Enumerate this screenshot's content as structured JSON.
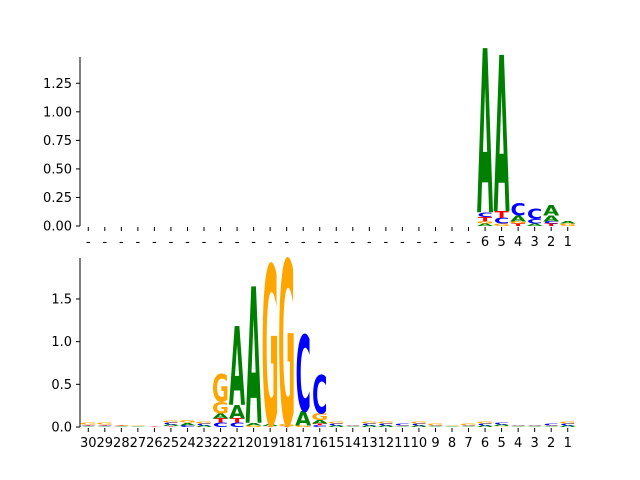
{
  "colors": {
    "A": "#008000",
    "C": "#0000ff",
    "G": "#ffa500",
    "T": "#ff0000",
    "axis": "#000000"
  },
  "chart_data": [
    {
      "type": "sequence-logo",
      "title": "",
      "xlabel": "",
      "ylabel": "",
      "ylim": [
        0,
        1.48
      ],
      "yticks": [
        "0.00",
        "0.25",
        "0.50",
        "0.75",
        "1.00",
        "1.25"
      ],
      "ytick_values": [
        0,
        0.25,
        0.5,
        0.75,
        1.0,
        1.25
      ],
      "xticks": [
        "-",
        "-",
        "-",
        "-",
        "-",
        "-",
        "-",
        "-",
        "-",
        "-",
        "-",
        "-",
        "-",
        "-",
        "-",
        "-",
        "-",
        "-",
        "-",
        "-",
        "-",
        "-",
        "-",
        "-",
        "6",
        "5",
        "4",
        "3",
        "2",
        "1"
      ],
      "positions": [
        {},
        {},
        {},
        {},
        {},
        {},
        {},
        {},
        {},
        {},
        {},
        {},
        {},
        {},
        {},
        {},
        {},
        {},
        {},
        {},
        {},
        {},
        {},
        {},
        {
          "T": 0.04,
          "A": 0.02,
          "C": 0.04,
          "G": 0.02
        },
        {
          "T": 0.06,
          "G": 0.02,
          "C": 0.05
        },
        {
          "T": 0.02,
          "A": 0.05,
          "G": 0.02
        },
        {
          "C": 0.04,
          "A": 0.02
        },
        {
          "A": 0.05,
          "T": 0.02,
          "C": 0.02
        },
        {
          "G": 0.02,
          "A": 0.02
        }
      ],
      "dominant": [
        {
          "index": 24,
          "letter": "A",
          "value": 1.44
        },
        {
          "index": 25,
          "letter": "A",
          "value": 1.37
        },
        {
          "index": 26,
          "letter": "C",
          "value": 0.11
        },
        {
          "index": 27,
          "letter": "C",
          "value": 0.09
        },
        {
          "index": 28,
          "letter": "A",
          "value": 0.09
        }
      ]
    },
    {
      "type": "sequence-logo",
      "title": "",
      "xlabel": "",
      "ylabel": "",
      "ylim": [
        0,
        1.98
      ],
      "yticks": [
        "0.0",
        "0.5",
        "1.0",
        "1.5"
      ],
      "ytick_values": [
        0,
        0.5,
        1.0,
        1.5
      ],
      "xticks": [
        "30",
        "29",
        "28",
        "27",
        "26",
        "25",
        "24",
        "23",
        "22",
        "21",
        "20",
        "19",
        "18",
        "17",
        "16",
        "15",
        "14",
        "13",
        "12",
        "11",
        "10",
        "9",
        "8",
        "7",
        "6",
        "5",
        "4",
        "3",
        "2",
        "1"
      ],
      "positions": [
        {
          "A": 0.01,
          "C": 0.01,
          "G": 0.02,
          "T": 0.01
        },
        {
          "A": 0.01,
          "C": 0.01,
          "G": 0.02,
          "T": 0.01
        },
        {
          "A": 0.01,
          "G": 0.01,
          "T": 0.01
        },
        {
          "A": 0.01,
          "G": 0.01
        },
        {
          "T": 0.01
        },
        {
          "A": 0.02,
          "C": 0.02,
          "G": 0.02,
          "T": 0.01
        },
        {
          "A": 0.03,
          "C": 0.02,
          "G": 0.03
        },
        {
          "A": 0.02,
          "C": 0.02,
          "G": 0.02
        },
        {
          "C": 0.05,
          "A": 0.06,
          "T": 0.05,
          "G": 0.14
        },
        {
          "C": 0.05,
          "T": 0.05,
          "A": 0.16
        },
        {
          "A": 0.03,
          "G": 0.02
        },
        {
          "A": 0.02,
          "T": 0.01
        },
        {
          "G": 0.02,
          "T": 0.01
        },
        {
          "A": 0.17,
          "G": 0.02
        },
        {
          "A": 0.04,
          "C": 0.02,
          "T": 0.02,
          "G": 0.08
        },
        {
          "A": 0.02,
          "C": 0.02,
          "G": 0.02
        },
        {
          "A": 0.01,
          "C": 0.01,
          "G": 0.01
        },
        {
          "A": 0.02,
          "C": 0.02,
          "G": 0.02
        },
        {
          "A": 0.02,
          "C": 0.02,
          "G": 0.02
        },
        {
          "A": 0.01,
          "C": 0.02,
          "G": 0.01
        },
        {
          "A": 0.02,
          "C": 0.02,
          "G": 0.02
        },
        {
          "A": 0.01,
          "C": 0.01,
          "G": 0.02
        },
        {
          "A": 0.01,
          "G": 0.01
        },
        {
          "A": 0.01,
          "C": 0.01,
          "G": 0.02
        },
        {
          "A": 0.02,
          "C": 0.02,
          "G": 0.02
        },
        {
          "A": 0.02,
          "C": 0.02,
          "G": 0.01
        },
        {
          "A": 0.01,
          "C": 0.01,
          "G": 0.01
        },
        {
          "A": 0.01,
          "C": 0.01,
          "G": 0.01
        },
        {
          "A": 0.01,
          "C": 0.02,
          "G": 0.01
        },
        {
          "A": 0.02,
          "C": 0.02,
          "G": 0.02
        }
      ],
      "dominant": [
        {
          "index": 8,
          "letter": "G",
          "value": 0.32
        },
        {
          "index": 9,
          "letter": "A",
          "value": 0.92
        },
        {
          "index": 10,
          "letter": "A",
          "value": 1.6
        },
        {
          "index": 11,
          "letter": "G",
          "value": 1.87
        },
        {
          "index": 12,
          "letter": "G",
          "value": 1.93
        },
        {
          "index": 13,
          "letter": "C",
          "value": 0.89
        },
        {
          "index": 14,
          "letter": "C",
          "value": 0.45
        }
      ]
    }
  ]
}
